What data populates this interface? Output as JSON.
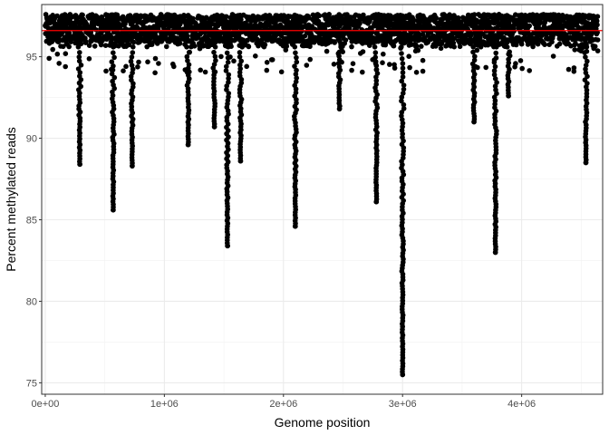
{
  "chart_data": {
    "type": "scatter",
    "title": "",
    "xlabel": "Genome position",
    "ylabel": "Percent methylated reads",
    "xlim": [
      -30000,
      4680000
    ],
    "ylim": [
      74.3,
      98.2
    ],
    "x_ticks": [
      {
        "value": 0,
        "label": "0e+00"
      },
      {
        "value": 1000000,
        "label": "1e+06"
      },
      {
        "value": 2000000,
        "label": "2e+06"
      },
      {
        "value": 3000000,
        "label": "3e+06"
      },
      {
        "value": 4000000,
        "label": "4e+06"
      }
    ],
    "y_ticks": [
      {
        "value": 75,
        "label": "75"
      },
      {
        "value": 80,
        "label": "80"
      },
      {
        "value": 85,
        "label": "85"
      },
      {
        "value": 90,
        "label": "90"
      },
      {
        "value": 95,
        "label": "95"
      }
    ],
    "grid": true,
    "hline": {
      "y": 96.6,
      "color": "#ff0000"
    },
    "point_color": "#000000",
    "baseline_band": {
      "x_start": 0,
      "x_end": 4640000,
      "y_low": 95.6,
      "y_high": 97.6
    },
    "dips": [
      {
        "x": 290000,
        "y_min": 88.4
      },
      {
        "x": 570000,
        "y_min": 85.6
      },
      {
        "x": 730000,
        "y_min": 88.3
      },
      {
        "x": 1200000,
        "y_min": 89.6
      },
      {
        "x": 1420000,
        "y_min": 90.7
      },
      {
        "x": 1530000,
        "y_min": 83.4
      },
      {
        "x": 1640000,
        "y_min": 88.6
      },
      {
        "x": 2100000,
        "y_min": 84.6
      },
      {
        "x": 2470000,
        "y_min": 91.8
      },
      {
        "x": 2780000,
        "y_min": 86.1
      },
      {
        "x": 3000000,
        "y_min": 75.5
      },
      {
        "x": 3600000,
        "y_min": 91.0
      },
      {
        "x": 3780000,
        "y_min": 83.0
      },
      {
        "x": 3890000,
        "y_min": 92.6
      },
      {
        "x": 4540000,
        "y_min": 88.5
      }
    ]
  }
}
